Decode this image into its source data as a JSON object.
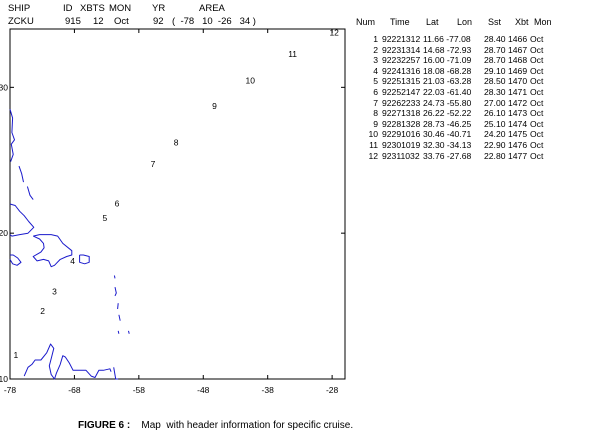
{
  "header": {
    "labels": {
      "ship": "SHIP",
      "id": "ID",
      "xbts": "XBTS",
      "mon": "MON",
      "yr": "YR",
      "area": "AREA"
    },
    "values": {
      "ship": "ZCKU",
      "id": "915",
      "xbts": "12",
      "mon": "Oct",
      "yr": "92",
      "area": "(  -78   10  -26   34 )"
    }
  },
  "table": {
    "columns": [
      "Num",
      "Time",
      "Lat",
      "Lon",
      "Sst",
      "Xbt",
      "Mon"
    ],
    "rows": [
      {
        "num": "1",
        "time": "92221312",
        "latlon": "11.66 -77.08",
        "sst": "28.40",
        "xbt": "1466",
        "mon": "Oct"
      },
      {
        "num": "2",
        "time": "92231314",
        "latlon": "14.68 -72.93",
        "sst": "28.70",
        "xbt": "1467",
        "mon": "Oct"
      },
      {
        "num": "3",
        "time": "92232257",
        "latlon": "16.00 -71.09",
        "sst": "28.70",
        "xbt": "1468",
        "mon": "Oct"
      },
      {
        "num": "4",
        "time": "92241316",
        "latlon": "18.08 -68.28",
        "sst": "29.10",
        "xbt": "1469",
        "mon": "Oct"
      },
      {
        "num": "5",
        "time": "92251315",
        "latlon": "21.03 -63.28",
        "sst": "28.50",
        "xbt": "1470",
        "mon": "Oct"
      },
      {
        "num": "6",
        "time": "92252147",
        "latlon": "22.03 -61.40",
        "sst": "28.30",
        "xbt": "1471",
        "mon": "Oct"
      },
      {
        "num": "7",
        "time": "92262233",
        "latlon": "24.73 -55.80",
        "sst": "27.00",
        "xbt": "1472",
        "mon": "Oct"
      },
      {
        "num": "8",
        "time": "92271318",
        "latlon": "26.22 -52.22",
        "sst": "26.10",
        "xbt": "1473",
        "mon": "Oct"
      },
      {
        "num": "9",
        "time": "92281328",
        "latlon": "28.73 -46.25",
        "sst": "25.10",
        "xbt": "1474",
        "mon": "Oct"
      },
      {
        "num": "10",
        "time": "92291016",
        "latlon": "30.46 -40.71",
        "sst": "24.20",
        "xbt": "1475",
        "mon": "Oct"
      },
      {
        "num": "11",
        "time": "92301019",
        "latlon": "32.30 -34.13",
        "sst": "22.90",
        "xbt": "1476",
        "mon": "Oct"
      },
      {
        "num": "12",
        "time": "92311032",
        "latlon": "33.76 -27.68",
        "sst": "22.80",
        "xbt": "1477",
        "mon": "Oct"
      }
    ]
  },
  "chart_data": {
    "type": "scatter",
    "title": "",
    "xlabel": "",
    "ylabel": "",
    "xlim": [
      -78,
      -26
    ],
    "ylim": [
      10,
      34
    ],
    "x_ticks": [
      -78,
      -68,
      -58,
      -48,
      -38,
      -28
    ],
    "y_ticks": [
      10,
      20,
      30
    ],
    "grid": false,
    "points": [
      {
        "label": "1",
        "lon": -77.08,
        "lat": 11.66
      },
      {
        "label": "2",
        "lon": -72.93,
        "lat": 14.68
      },
      {
        "label": "3",
        "lon": -71.09,
        "lat": 16.0
      },
      {
        "label": "4",
        "lon": -68.28,
        "lat": 18.08
      },
      {
        "label": "5",
        "lon": -63.28,
        "lat": 21.03
      },
      {
        "label": "6",
        "lon": -61.4,
        "lat": 22.03
      },
      {
        "label": "7",
        "lon": -55.8,
        "lat": 24.73
      },
      {
        "label": "8",
        "lon": -52.22,
        "lat": 26.22
      },
      {
        "label": "9",
        "lon": -46.25,
        "lat": 28.73
      },
      {
        "label": "10",
        "lon": -40.71,
        "lat": 30.46
      },
      {
        "label": "11",
        "lon": -34.13,
        "lat": 32.3
      },
      {
        "label": "12",
        "lon": -27.68,
        "lat": 33.76
      }
    ],
    "coastline_color": "#1a1acc"
  },
  "caption": {
    "label": "FIGURE 6 :",
    "text": "Map  with header information for specific cruise."
  }
}
